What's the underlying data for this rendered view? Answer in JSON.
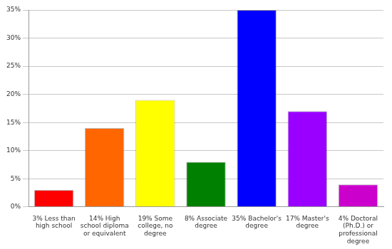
{
  "chart_data": {
    "type": "bar",
    "categories": [
      "3% Less than high school",
      "14% High school diploma or equivalent",
      "19% Some college, no degree",
      "8% Associate degree",
      "35% Bachelor's degree",
      "17% Master's degree",
      "4% Doctoral (Ph.D.) or professional degree"
    ],
    "values": [
      3,
      14,
      19,
      8,
      35,
      17,
      4
    ],
    "colors": [
      "#ff0000",
      "#ff6600",
      "#ffff00",
      "#008000",
      "#0000ff",
      "#9900ff",
      "#cc00cc"
    ],
    "ylim": [
      0,
      35
    ],
    "yticks": [
      {
        "value": 0,
        "label": "0%"
      },
      {
        "value": 5,
        "label": "5%"
      },
      {
        "value": 10,
        "label": "10%"
      },
      {
        "value": 15,
        "label": "15%"
      },
      {
        "value": 20,
        "label": "20%"
      },
      {
        "value": 25,
        "label": "25%"
      },
      {
        "value": 30,
        "label": "30%"
      },
      {
        "value": 35,
        "label": "35%"
      }
    ],
    "grid": true
  }
}
